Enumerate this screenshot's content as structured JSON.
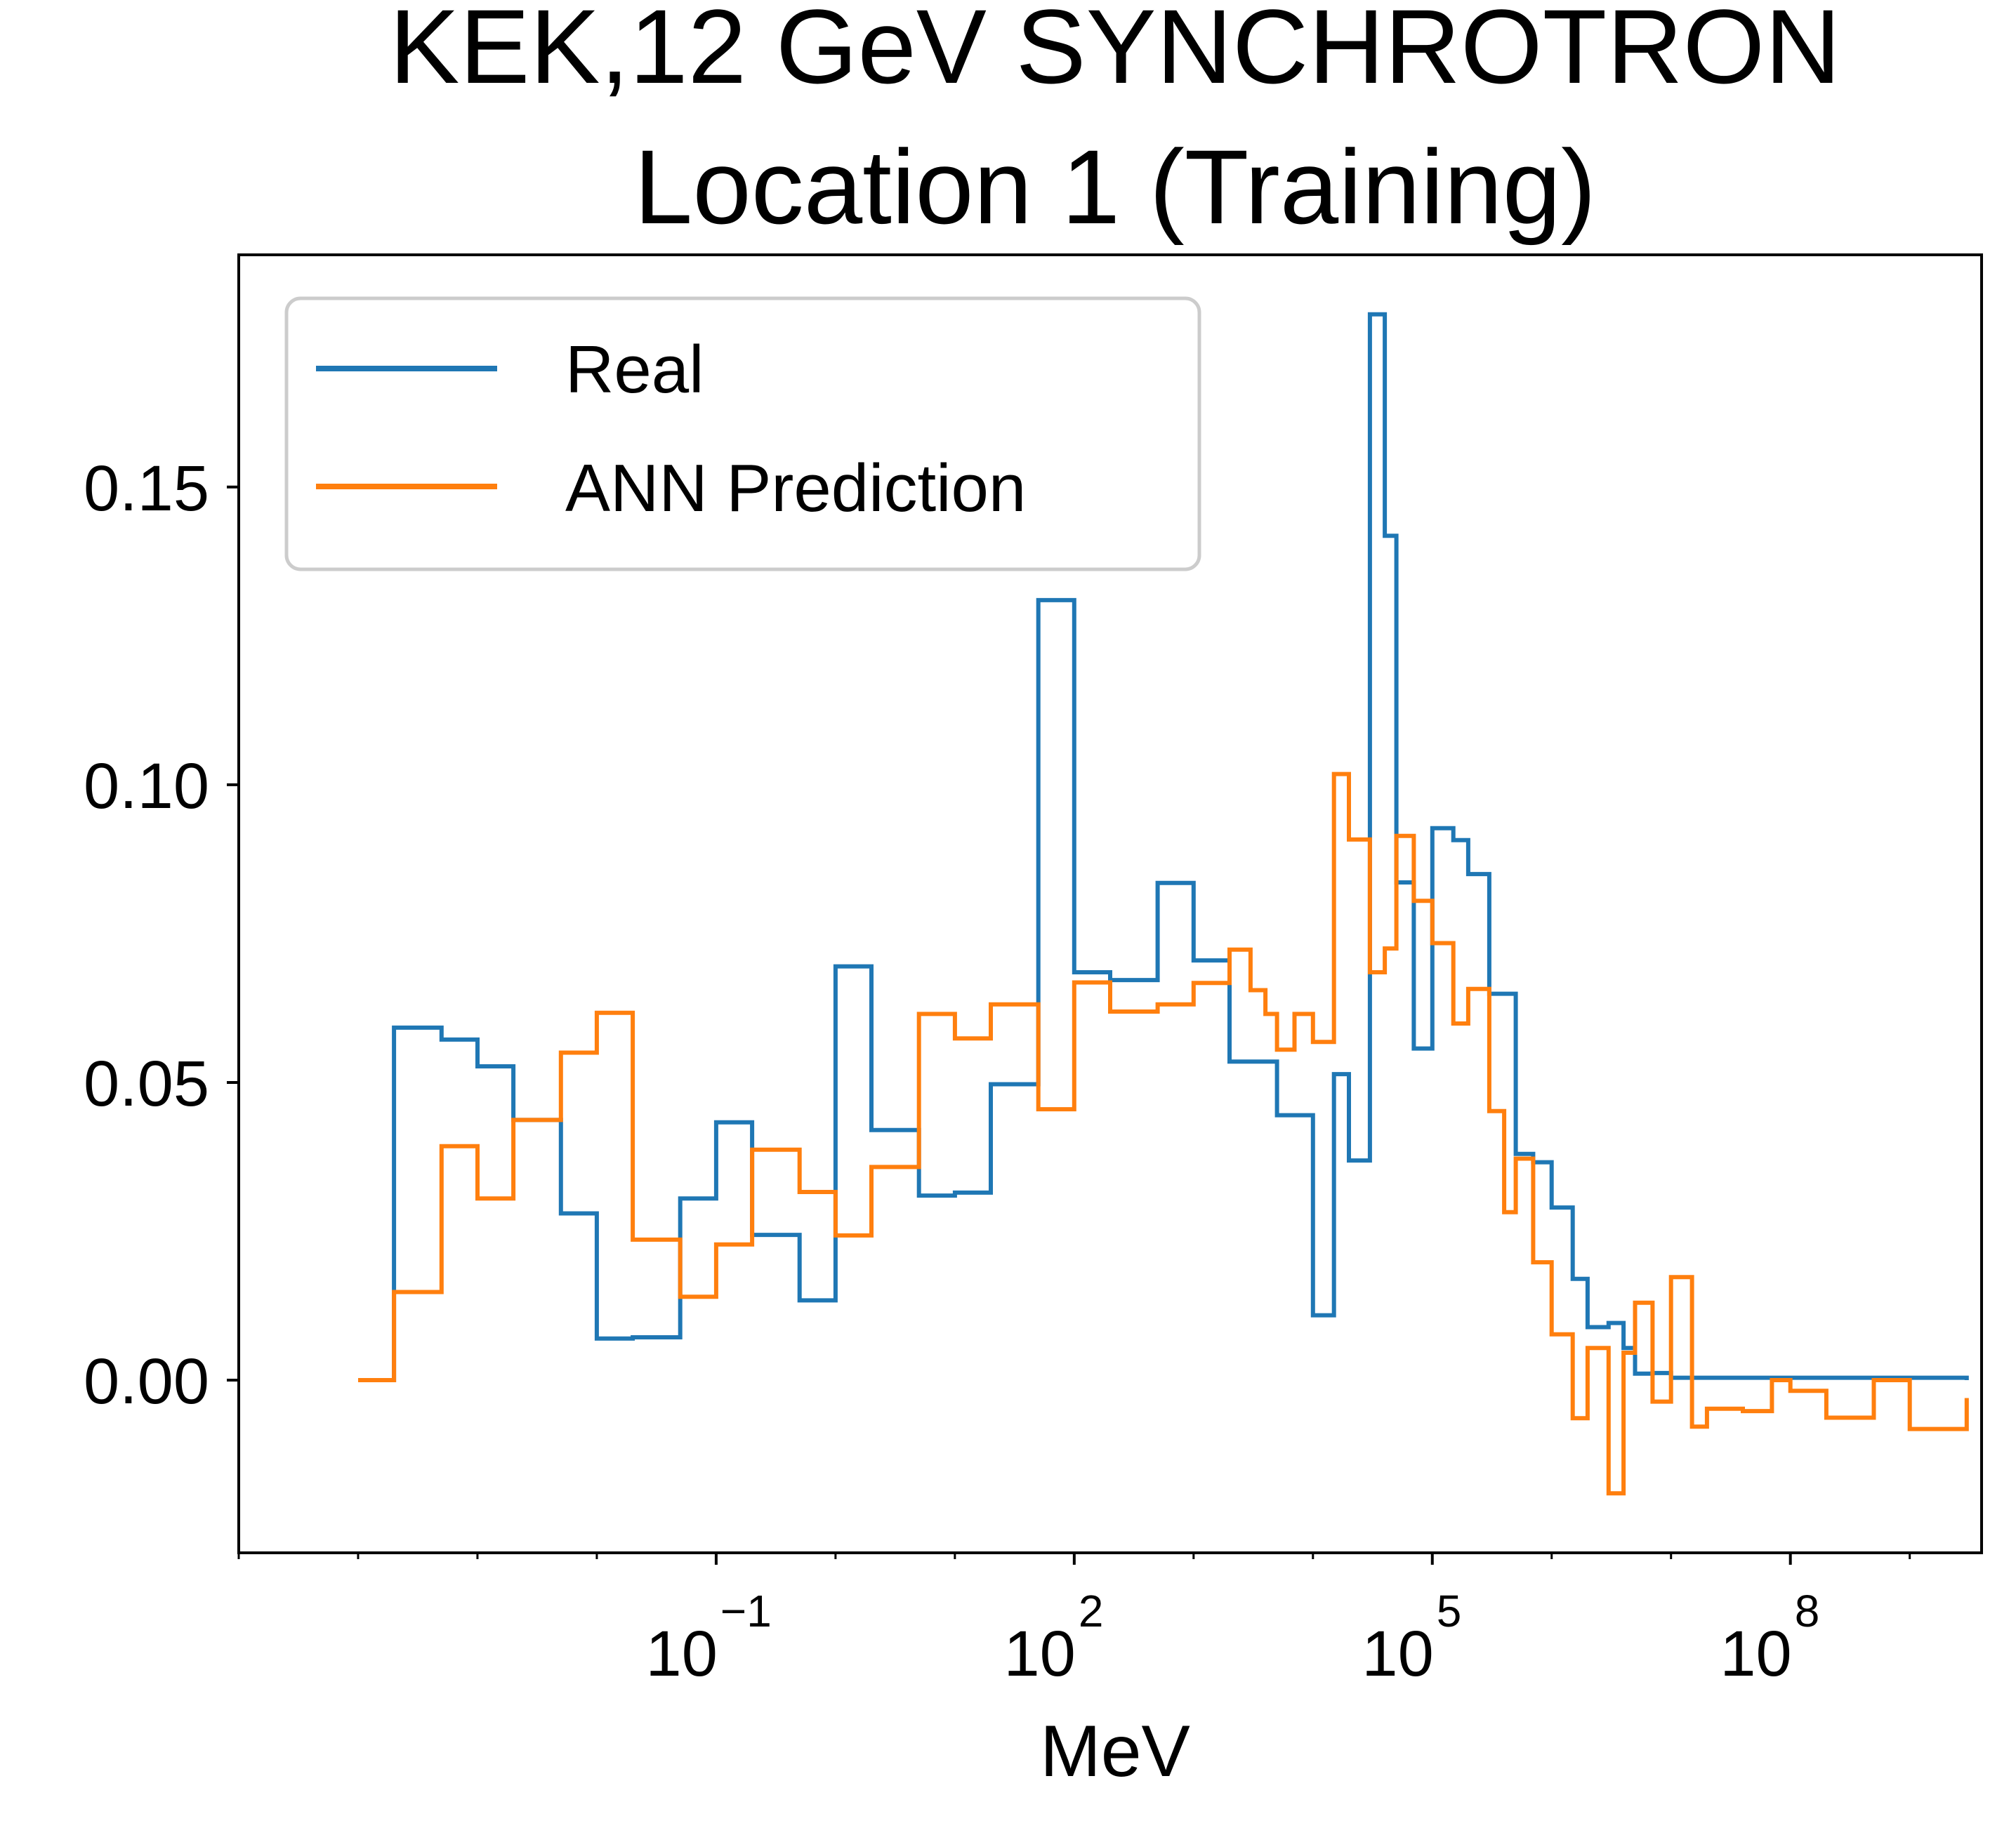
{
  "chart_data": {
    "type": "line",
    "style": "step",
    "title": [
      "KEK,12 GeV SYNCHROTRON",
      "Location 1 (Training)"
    ],
    "xlabel": "MeV",
    "ylabel": "",
    "x_scale": "log",
    "xlim": [
      1e-05,
      4000000000.0
    ],
    "ylim": [
      -0.029,
      0.189
    ],
    "x_ticks": [
      {
        "base": "10",
        "exp": "−1",
        "value": 0.1
      },
      {
        "base": "10",
        "exp": "2",
        "value": 100
      },
      {
        "base": "10",
        "exp": "5",
        "value": 100000
      },
      {
        "base": "10",
        "exp": "8",
        "value": 100000000
      }
    ],
    "y_ticks": [
      {
        "label": "0.00",
        "value": 0.0
      },
      {
        "label": "0.05",
        "value": 0.05
      },
      {
        "label": "0.10",
        "value": 0.1
      },
      {
        "label": "0.15",
        "value": 0.15
      }
    ],
    "grid": false,
    "legend_position": "top-left",
    "series": [
      {
        "name": "Real",
        "color": "#1f77b4",
        "x": [
          0.0001,
          0.0002,
          0.0005,
          0.001,
          0.002,
          0.005,
          0.01,
          0.02,
          0.05,
          0.1,
          0.2,
          0.5,
          1,
          2,
          5,
          10,
          20,
          50,
          100,
          200,
          500,
          1000,
          2000,
          5000,
          10000,
          15000,
          20000,
          30000,
          40000,
          50000,
          70000,
          100000,
          150000,
          200000,
          300000,
          500000,
          700000,
          1000000,
          1500000,
          2000000,
          3000000,
          4000000,
          5000000,
          7000000,
          10000000,
          3000000000
        ],
        "y": [
          0.0,
          0.0592,
          0.0572,
          0.0527,
          0.0437,
          0.028,
          0.007,
          0.0072,
          0.0305,
          0.0433,
          0.0244,
          0.0134,
          0.0695,
          0.042,
          0.031,
          0.0315,
          0.0497,
          0.131,
          0.0685,
          0.0672,
          0.0835,
          0.0705,
          0.0535,
          0.0445,
          0.0109,
          0.0514,
          0.0369,
          0.179,
          0.1418,
          0.0836,
          0.0557,
          0.0927,
          0.0907,
          0.085,
          0.0649,
          0.038,
          0.0366,
          0.029,
          0.017,
          0.0089,
          0.0096,
          0.0054,
          0.0011,
          0.0012,
          0.0004,
          0.0
        ]
      },
      {
        "name": "ANN Prediction",
        "color": "#ff7f0e",
        "x": [
          0.0001,
          0.0002,
          0.0005,
          0.001,
          0.002,
          0.005,
          0.01,
          0.02,
          0.05,
          0.1,
          0.2,
          0.5,
          1,
          2,
          5,
          10,
          20,
          50,
          100,
          200,
          500,
          1000,
          2000,
          3000,
          4000,
          5000,
          7000,
          10000,
          15000,
          20000,
          30000,
          40000,
          50000,
          70000,
          100000,
          150000,
          200000,
          300000,
          400000,
          500000,
          700000,
          1000000,
          1500000,
          2000000,
          3000000,
          4000000,
          5000000,
          7000000,
          10000000,
          15000000,
          20000000,
          40000000,
          70000000,
          100000000,
          200000000,
          500000000,
          1000000000,
          3000000000
        ],
        "y": [
          0.0,
          0.0148,
          0.0393,
          0.0305,
          0.0437,
          0.055,
          0.0617,
          0.0236,
          0.014,
          0.0228,
          0.0387,
          0.0316,
          0.0243,
          0.0358,
          0.0615,
          0.0574,
          0.0631,
          0.0455,
          0.0668,
          0.0619,
          0.0631,
          0.0667,
          0.0723,
          0.0655,
          0.0615,
          0.0555,
          0.0615,
          0.0568,
          0.1018,
          0.0908,
          0.0685,
          0.0725,
          0.0914,
          0.0805,
          0.0734,
          0.0599,
          0.0657,
          0.0452,
          0.0282,
          0.0372,
          0.0198,
          0.0077,
          -0.0064,
          0.0054,
          -0.019,
          0.0046,
          0.013,
          -0.0036,
          0.0173,
          -0.0078,
          -0.0048,
          -0.0052,
          0.0,
          -0.0018,
          -0.0063,
          0.0,
          -0.0082,
          -0.003
        ]
      }
    ]
  }
}
